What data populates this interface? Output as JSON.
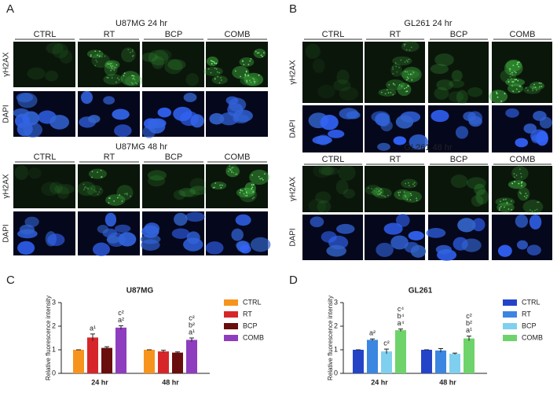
{
  "figure": {
    "panels": [
      {
        "label": "A",
        "blocks": [
          {
            "title": "U87MG 24 hr",
            "columns": [
              "CTRL",
              "RT",
              "BCP",
              "COMB"
            ],
            "rows": [
              "γH2AX",
              "DAPI"
            ]
          },
          {
            "title": "U87MG 48 hr",
            "columns": [
              "CTRL",
              "RT",
              "BCP",
              "COMB"
            ],
            "rows": [
              "γH2AX",
              "DAPI"
            ]
          }
        ]
      },
      {
        "label": "B",
        "blocks": [
          {
            "title": "GL261 24 hr",
            "columns": [
              "CTRL",
              "RT",
              "BCP",
              "COMB"
            ],
            "rows": [
              "γH2AX",
              "DAPI"
            ]
          },
          {
            "title": "GL261 48 hr",
            "columns": [
              "CTRL",
              "RT",
              "BCP",
              "COMB"
            ],
            "rows": [
              "γH2AX",
              "DAPI"
            ]
          }
        ]
      }
    ]
  },
  "chart_data": [
    {
      "type": "bar",
      "panel": "C",
      "title": "U87MG",
      "ylabel": "Relative fluorescence intensity",
      "categories": [
        "24 hr",
        "48 hr"
      ],
      "ylim": [
        0,
        3
      ],
      "yticks": [
        0,
        1,
        2,
        3
      ],
      "legend": "right",
      "series": [
        {
          "name": "CTRL",
          "color": "#f7941d",
          "values": [
            1.0,
            1.0
          ],
          "errors": [
            0,
            0
          ],
          "labels": [
            null,
            null
          ]
        },
        {
          "name": "RT",
          "color": "#d7262a",
          "values": [
            1.52,
            0.93
          ],
          "errors": [
            0.15,
            0.05
          ],
          "labels": [
            [
              "a¹"
            ],
            null
          ]
        },
        {
          "name": "BCP",
          "color": "#6a0d0d",
          "values": [
            1.08,
            0.88
          ],
          "errors": [
            0.05,
            0.03
          ],
          "labels": [
            null,
            null
          ]
        },
        {
          "name": "COMB",
          "color": "#8e3dbf",
          "values": [
            1.94,
            1.42
          ],
          "errors": [
            0.08,
            0.08
          ],
          "labels": [
            [
              "a²",
              "c²"
            ],
            [
              "a¹",
              "b²",
              "c²"
            ]
          ]
        }
      ]
    },
    {
      "type": "bar",
      "panel": "D",
      "title": "GL261",
      "ylabel": "Relative fluorescence intensity",
      "categories": [
        "24 hr",
        "48 hr"
      ],
      "ylim": [
        0,
        3
      ],
      "yticks": [
        0,
        1,
        2,
        3
      ],
      "legend": "right",
      "series": [
        {
          "name": "CTRL",
          "color": "#2444c8",
          "values": [
            1.0,
            1.0
          ],
          "errors": [
            0,
            0
          ],
          "labels": [
            null,
            null
          ]
        },
        {
          "name": "RT",
          "color": "#3b86e0",
          "values": [
            1.42,
            0.97
          ],
          "errors": [
            0.04,
            0.08
          ],
          "labels": [
            [
              "a²"
            ],
            null
          ]
        },
        {
          "name": "BCP",
          "color": "#7fd0ee",
          "values": [
            0.93,
            0.83
          ],
          "errors": [
            0.1,
            0.03
          ],
          "labels": [
            [
              "c²"
            ],
            null
          ]
        },
        {
          "name": "COMB",
          "color": "#6ed36a",
          "values": [
            1.83,
            1.48
          ],
          "errors": [
            0.05,
            0.1
          ],
          "labels": [
            [
              "a⁴",
              "b⁴",
              "c⁴"
            ],
            [
              "a¹",
              "b²",
              "c²"
            ]
          ]
        }
      ]
    }
  ]
}
